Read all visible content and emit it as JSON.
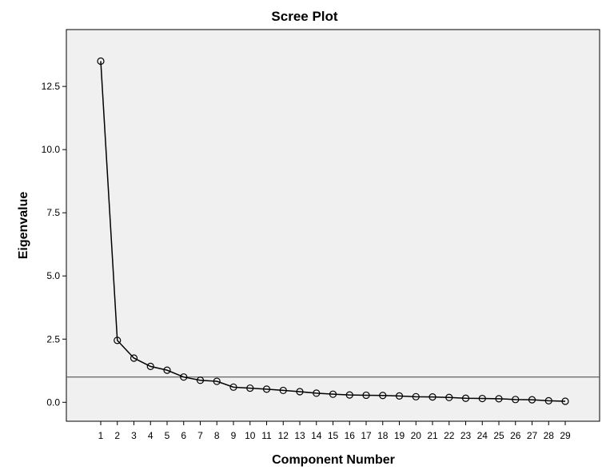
{
  "chart_data": {
    "type": "line",
    "title": "Scree Plot",
    "xlabel": "Component Number",
    "ylabel": "Eigenvalue",
    "x": [
      1,
      2,
      3,
      4,
      5,
      6,
      7,
      8,
      9,
      10,
      11,
      12,
      13,
      14,
      15,
      16,
      17,
      18,
      19,
      20,
      21,
      22,
      23,
      24,
      25,
      26,
      27,
      28,
      29
    ],
    "values": [
      13.5,
      2.45,
      1.75,
      1.42,
      1.27,
      1.0,
      0.87,
      0.83,
      0.6,
      0.56,
      0.52,
      0.47,
      0.42,
      0.36,
      0.32,
      0.29,
      0.28,
      0.27,
      0.25,
      0.22,
      0.21,
      0.19,
      0.16,
      0.15,
      0.14,
      0.11,
      0.1,
      0.06,
      0.04
    ],
    "ylim": [
      -0.75,
      14.75
    ],
    "yticks": [
      "0.0",
      "2.5",
      "5.0",
      "7.5",
      "10.0",
      "12.5"
    ],
    "ytick_values": [
      0,
      2.5,
      5.0,
      7.5,
      10.0,
      12.5
    ],
    "xticks": [
      "1",
      "2",
      "3",
      "4",
      "5",
      "6",
      "7",
      "8",
      "9",
      "10",
      "11",
      "12",
      "13",
      "14",
      "15",
      "16",
      "17",
      "18",
      "19",
      "20",
      "21",
      "22",
      "23",
      "24",
      "25",
      "26",
      "27",
      "28",
      "29"
    ],
    "reference_line_y": 1.0,
    "colors": {
      "plot_background": "#f0f0f0",
      "line": "#000000",
      "reference_line": "#555555"
    }
  }
}
